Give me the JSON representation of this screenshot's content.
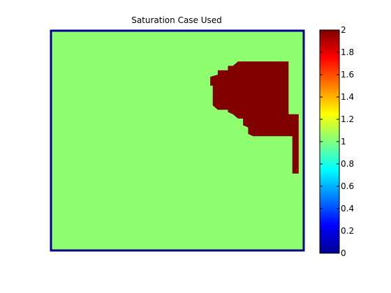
{
  "chart_data": {
    "type": "heatmap",
    "title": "Saturation Case Used",
    "xlabel": "",
    "ylabel": "",
    "grid": false,
    "background_value": 1,
    "region_value": 2,
    "region_polygon": [
      [
        0.74,
        0.86
      ],
      [
        0.94,
        0.86
      ],
      [
        0.94,
        0.62
      ],
      [
        0.98,
        0.62
      ],
      [
        0.98,
        0.35
      ],
      [
        0.955,
        0.35
      ],
      [
        0.955,
        0.52
      ],
      [
        0.94,
        0.52
      ],
      [
        0.94,
        0.52
      ],
      [
        0.8,
        0.52
      ],
      [
        0.78,
        0.53
      ],
      [
        0.78,
        0.56
      ],
      [
        0.76,
        0.57
      ],
      [
        0.76,
        0.6
      ],
      [
        0.74,
        0.6
      ],
      [
        0.72,
        0.62
      ],
      [
        0.7,
        0.63
      ],
      [
        0.7,
        0.64
      ],
      [
        0.66,
        0.64
      ],
      [
        0.64,
        0.66
      ],
      [
        0.64,
        0.75
      ],
      [
        0.63,
        0.75
      ],
      [
        0.63,
        0.79
      ],
      [
        0.66,
        0.8
      ],
      [
        0.66,
        0.82
      ],
      [
        0.7,
        0.82
      ],
      [
        0.7,
        0.84
      ],
      [
        0.72,
        0.84
      ],
      [
        0.74,
        0.86
      ]
    ],
    "colorbar": {
      "min": 0,
      "max": 2,
      "ticks": [
        "0",
        "0.2",
        "0.4",
        "0.6",
        "0.8",
        "1",
        "1.2",
        "1.4",
        "1.6",
        "1.8",
        "2"
      ],
      "colormap": "jet"
    },
    "colors": {
      "background_cell": "#8fff70",
      "region_cell": "#800000",
      "axes_frame": "#00008b"
    }
  }
}
